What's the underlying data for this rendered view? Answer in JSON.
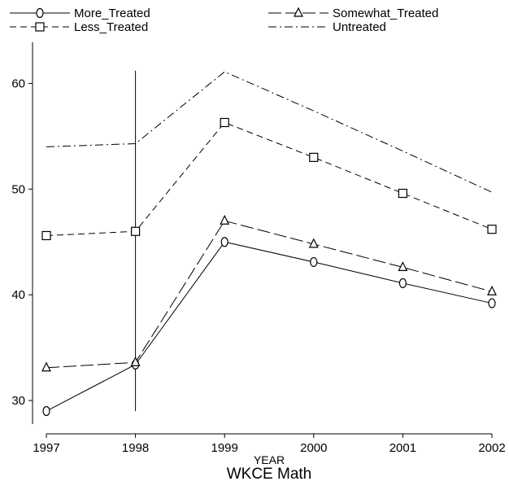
{
  "chart_data": {
    "type": "line",
    "title": "WKCE Math",
    "xlabel": "YEAR",
    "ylabel": "",
    "x": [
      1997,
      1998,
      1999,
      2000,
      2001,
      2002
    ],
    "xlim": [
      1997,
      2002
    ],
    "ylim": [
      28,
      62.5
    ],
    "yticks": [
      30,
      40,
      50,
      60
    ],
    "xticks": [
      1997,
      1998,
      1999,
      2000,
      2001,
      2002
    ],
    "reference_line_x": 1998,
    "reference_line_y_range": [
      29,
      61.2
    ],
    "legend_position": "top",
    "series": [
      {
        "name": "More_Treated",
        "marker": "circle",
        "dash": "none",
        "values": [
          29.0,
          33.4,
          45.0,
          43.1,
          41.1,
          39.2
        ]
      },
      {
        "name": "Somewhat_Treated",
        "marker": "triangle",
        "dash": "long",
        "values": [
          33.1,
          33.6,
          47.0,
          44.8,
          42.6,
          40.3
        ]
      },
      {
        "name": "Less_Treated",
        "marker": "square",
        "dash": "dash",
        "values": [
          45.6,
          46.0,
          56.3,
          53.0,
          49.6,
          46.2
        ]
      },
      {
        "name": "Untreated",
        "marker": "none",
        "dash": "dashdot",
        "values": [
          54.0,
          54.3,
          61.1,
          57.4,
          53.6,
          49.7
        ]
      }
    ]
  }
}
